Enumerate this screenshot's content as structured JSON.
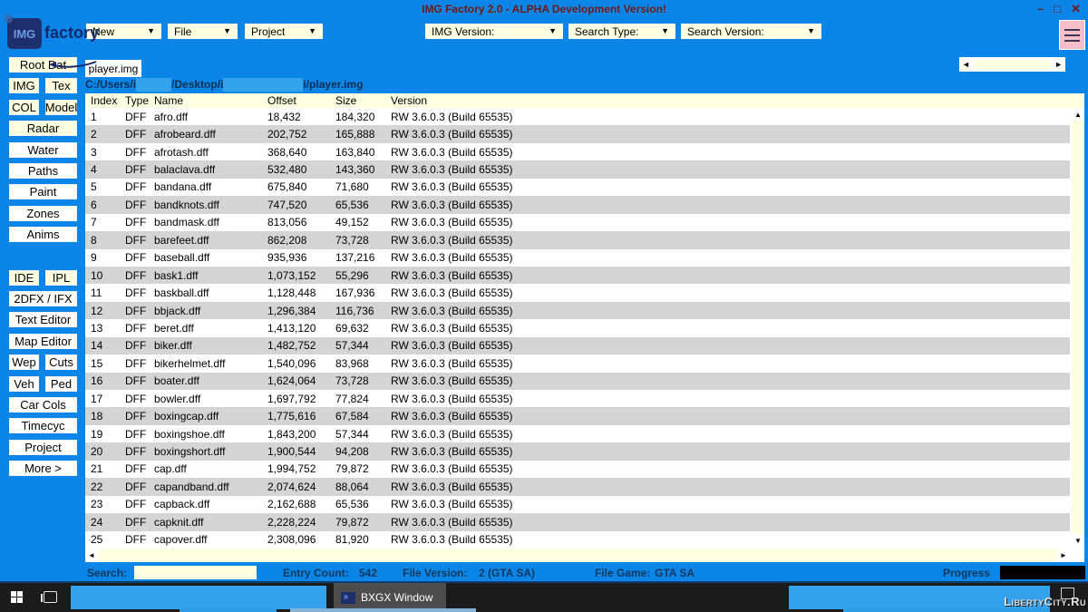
{
  "window": {
    "title": "IMG Factory 2.0 - ALPHA Development Version!",
    "controls": {
      "minimize": "–",
      "maximize": "□",
      "close": "✕"
    }
  },
  "logo": {
    "box": "IMG",
    "name": "factory"
  },
  "icons": {
    "dropdown": "▼",
    "up": "▲",
    "down": "▼",
    "left": "◄",
    "right": "►",
    "gear": "⚙"
  },
  "toolbar": {
    "menus": [
      "New",
      "File",
      "Project"
    ],
    "filters": [
      "IMG Version:",
      "Search Type:",
      "Search Version:"
    ]
  },
  "tabs": {
    "active": "player.img"
  },
  "path": {
    "part1": "C:/Users/i",
    "part2": "/Desktop/i",
    "part3": "i/player.img"
  },
  "sidebar": {
    "rows": [
      {
        "full": "Root Dat",
        "cream": true
      },
      {
        "left": "IMG",
        "right": "Tex",
        "cream": true
      },
      {
        "left": "COL",
        "right": "Model",
        "cream": true
      },
      {
        "full": "Radar",
        "cream": true
      },
      {
        "full": "Water"
      },
      {
        "full": "Paths"
      },
      {
        "full": "Paint"
      },
      {
        "full": "Zones"
      },
      {
        "full": "Anims"
      },
      {
        "left": "IDE",
        "right": "IPL",
        "cream": true
      },
      {
        "full": "2DFX / IFX"
      },
      {
        "full": "Text Editor"
      },
      {
        "full": "Map Editor"
      },
      {
        "left": "Wep",
        "right": "Cuts"
      },
      {
        "left": "Veh",
        "right": "Ped"
      },
      {
        "full": "Car Cols"
      },
      {
        "full": "Timecyc"
      },
      {
        "full": "Project"
      },
      {
        "full": "More >"
      }
    ]
  },
  "table": {
    "columns": [
      "Index",
      "Type",
      "Name",
      "Offset",
      "Size",
      "Version"
    ],
    "rows": [
      [
        "1",
        "DFF",
        "afro.dff",
        "18,432",
        "184,320",
        "RW 3.6.0.3 (Build 65535)"
      ],
      [
        "2",
        "DFF",
        "afrobeard.dff",
        "202,752",
        "165,888",
        "RW 3.6.0.3 (Build 65535)"
      ],
      [
        "3",
        "DFF",
        "afrotash.dff",
        "368,640",
        "163,840",
        "RW 3.6.0.3 (Build 65535)"
      ],
      [
        "4",
        "DFF",
        "balaclava.dff",
        "532,480",
        "143,360",
        "RW 3.6.0.3 (Build 65535)"
      ],
      [
        "5",
        "DFF",
        "bandana.dff",
        "675,840",
        "71,680",
        "RW 3.6.0.3 (Build 65535)"
      ],
      [
        "6",
        "DFF",
        "bandknots.dff",
        "747,520",
        "65,536",
        "RW 3.6.0.3 (Build 65535)"
      ],
      [
        "7",
        "DFF",
        "bandmask.dff",
        "813,056",
        "49,152",
        "RW 3.6.0.3 (Build 65535)"
      ],
      [
        "8",
        "DFF",
        "barefeet.dff",
        "862,208",
        "73,728",
        "RW 3.6.0.3 (Build 65535)"
      ],
      [
        "9",
        "DFF",
        "baseball.dff",
        "935,936",
        "137,216",
        "RW 3.6.0.3 (Build 65535)"
      ],
      [
        "10",
        "DFF",
        "bask1.dff",
        "1,073,152",
        "55,296",
        "RW 3.6.0.3 (Build 65535)"
      ],
      [
        "11",
        "DFF",
        "baskball.dff",
        "1,128,448",
        "167,936",
        "RW 3.6.0.3 (Build 65535)"
      ],
      [
        "12",
        "DFF",
        "bbjack.dff",
        "1,296,384",
        "116,736",
        "RW 3.6.0.3 (Build 65535)"
      ],
      [
        "13",
        "DFF",
        "beret.dff",
        "1,413,120",
        "69,632",
        "RW 3.6.0.3 (Build 65535)"
      ],
      [
        "14",
        "DFF",
        "biker.dff",
        "1,482,752",
        "57,344",
        "RW 3.6.0.3 (Build 65535)"
      ],
      [
        "15",
        "DFF",
        "bikerhelmet.dff",
        "1,540,096",
        "83,968",
        "RW 3.6.0.3 (Build 65535)"
      ],
      [
        "16",
        "DFF",
        "boater.dff",
        "1,624,064",
        "73,728",
        "RW 3.6.0.3 (Build 65535)"
      ],
      [
        "17",
        "DFF",
        "bowler.dff",
        "1,697,792",
        "77,824",
        "RW 3.6.0.3 (Build 65535)"
      ],
      [
        "18",
        "DFF",
        "boxingcap.dff",
        "1,775,616",
        "67,584",
        "RW 3.6.0.3 (Build 65535)"
      ],
      [
        "19",
        "DFF",
        "boxingshoe.dff",
        "1,843,200",
        "57,344",
        "RW 3.6.0.3 (Build 65535)"
      ],
      [
        "20",
        "DFF",
        "boxingshort.dff",
        "1,900,544",
        "94,208",
        "RW 3.6.0.3 (Build 65535)"
      ],
      [
        "21",
        "DFF",
        "cap.dff",
        "1,994,752",
        "79,872",
        "RW 3.6.0.3 (Build 65535)"
      ],
      [
        "22",
        "DFF",
        "capandband.dff",
        "2,074,624",
        "88,064",
        "RW 3.6.0.3 (Build 65535)"
      ],
      [
        "23",
        "DFF",
        "capback.dff",
        "2,162,688",
        "65,536",
        "RW 3.6.0.3 (Build 65535)"
      ],
      [
        "24",
        "DFF",
        "capknit.dff",
        "2,228,224",
        "79,872",
        "RW 3.6.0.3 (Build 65535)"
      ],
      [
        "25",
        "DFF",
        "capover.dff",
        "2,308,096",
        "81,920",
        "RW 3.6.0.3 (Build 65535)"
      ]
    ]
  },
  "statusbar": {
    "search_label": "Search:",
    "search_value": "",
    "entry_count_label": "Entry Count:",
    "entry_count_value": "542",
    "file_version_label": "File Version:",
    "file_version_value": "2 (GTA SA)",
    "file_game_label": "File Game:",
    "file_game_value": "GTA SA",
    "progress_label": "Progress"
  },
  "taskbar": {
    "app_window": "BXGX Window",
    "watermark": "LibertyCity.Ru"
  },
  "colors": {
    "window_blue": "#0b86e8",
    "censor_blue": "#34a1eb",
    "cream": "#ffffe1",
    "title_red": "#701a12",
    "status_navy": "#11375c",
    "row_gray": "#d4d4d4",
    "taskbar_black": "#1b1b1b",
    "logo_navy": "#1e2f6e",
    "menu_pink": "#f6bfc8"
  }
}
